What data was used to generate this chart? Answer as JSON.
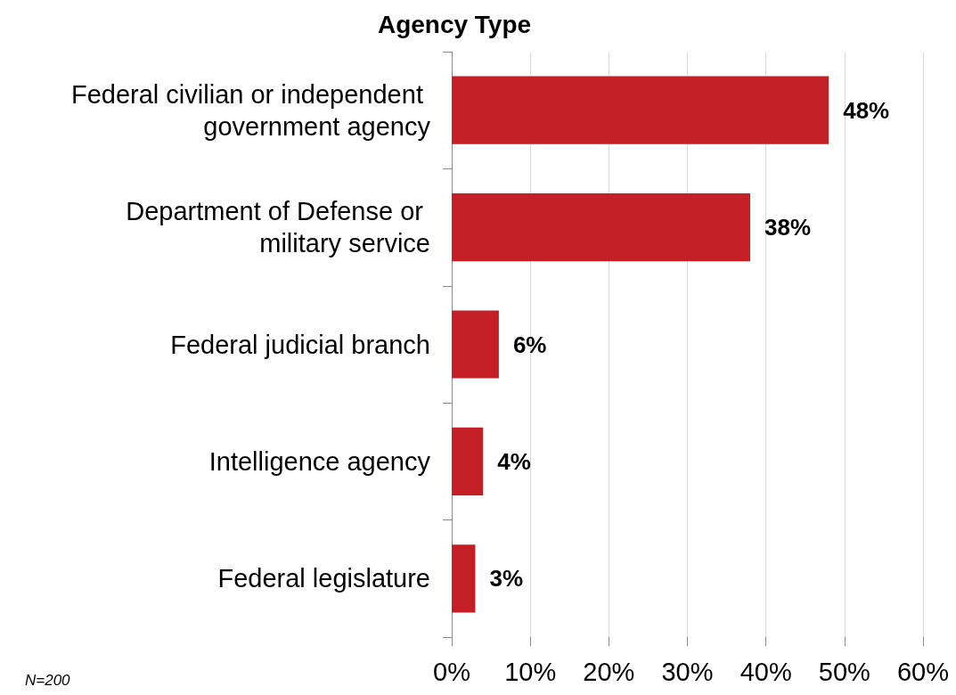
{
  "chart_data": {
    "type": "bar",
    "orientation": "horizontal",
    "title": "Agency Type",
    "categories": [
      "Federal civilian or independent government agency",
      "Department of Defense or military service",
      "Federal judicial branch",
      "Intelligence agency",
      "Federal legislature"
    ],
    "values": [
      48,
      38,
      6,
      4,
      3
    ],
    "value_labels": [
      "48%",
      "38%",
      "6%",
      "4%",
      "3%"
    ],
    "color": "#c41f27",
    "xlim": [
      0,
      60
    ],
    "xticks": [
      {
        "value": 0,
        "label": "0%"
      },
      {
        "value": 10,
        "label": "10%"
      },
      {
        "value": 20,
        "label": "20%"
      },
      {
        "value": 30,
        "label": "30%"
      },
      {
        "value": 40,
        "label": "40%"
      },
      {
        "value": 50,
        "label": "50%"
      },
      {
        "value": 60,
        "label": "60%"
      }
    ],
    "grid": "x",
    "annotations": [
      "N=200"
    ]
  }
}
